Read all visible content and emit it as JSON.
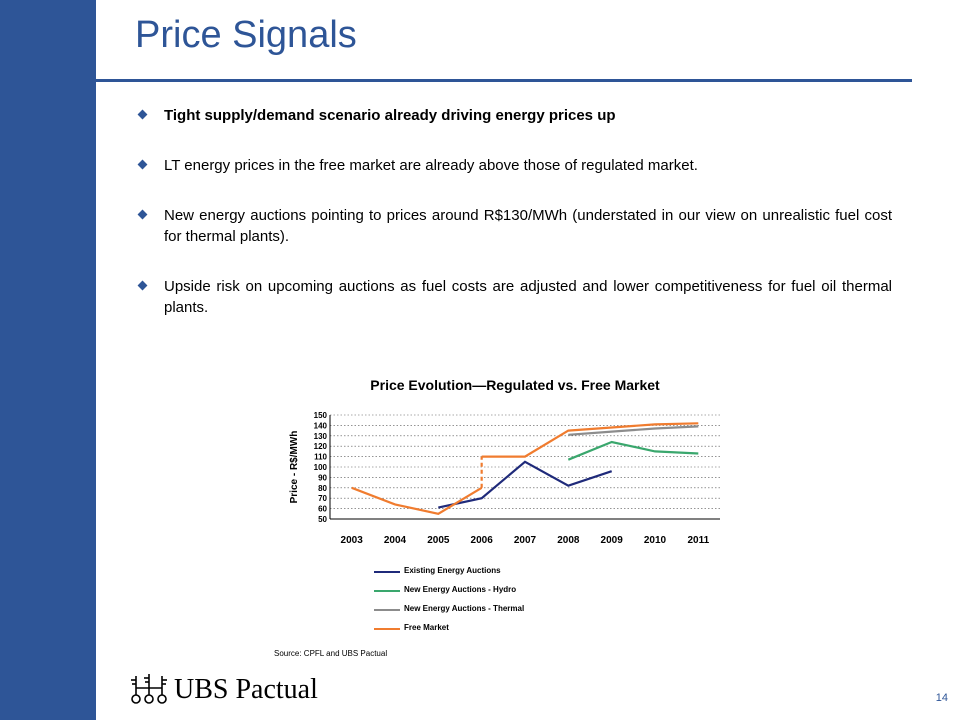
{
  "page": {
    "title": "Price Signals",
    "page_number": "14",
    "brand_color": "#2e5597"
  },
  "bullets": [
    "Tight supply/demand scenario already driving energy prices up",
    "LT energy prices in the free market are already above those of regulated market.",
    "New energy auctions pointing to prices around R$130/MWh (understated in our view on unrealistic fuel cost for thermal plants).",
    "Upside risk on upcoming auctions as fuel costs are adjusted and lower competitiveness for fuel oil thermal plants."
  ],
  "source_note": "Source: CPFL and UBS Pactual",
  "logo": {
    "text": "UBS Pactual",
    "icon": "keys-icon"
  },
  "chart_data": {
    "type": "line",
    "title": "Price Evolution—Regulated vs. Free Market",
    "ylabel": "Price - R$/MWh",
    "xlabel": "",
    "categories": [
      "2003",
      "2004",
      "2005",
      "2006",
      "2007",
      "2008",
      "2009",
      "2010",
      "2011"
    ],
    "ylim": [
      50,
      150
    ],
    "yticks": [
      50,
      60,
      70,
      80,
      90,
      100,
      110,
      120,
      130,
      140,
      150
    ],
    "grid": "dotted-horizontal",
    "series": [
      {
        "name": "Existing Energy Auctions",
        "color": "#1f2a7a",
        "points": [
          [
            2005,
            61
          ],
          [
            2006,
            70
          ],
          [
            2007,
            105
          ],
          [
            2008,
            82
          ],
          [
            2009,
            96
          ]
        ]
      },
      {
        "name": "New Energy Auctions - Hydro",
        "color": "#3aa76d",
        "points": [
          [
            2008,
            107
          ],
          [
            2009,
            124
          ],
          [
            2010,
            115
          ],
          [
            2011,
            113
          ]
        ]
      },
      {
        "name": "New Energy Auctions - Thermal",
        "color": "#8c8c8c",
        "points": [
          [
            2008,
            131
          ],
          [
            2009,
            134
          ],
          [
            2010,
            137
          ],
          [
            2011,
            139
          ]
        ]
      },
      {
        "name": "Free Market",
        "color": "#f07c2f",
        "points": [
          [
            2003,
            80
          ],
          [
            2004,
            64
          ],
          [
            2005,
            55
          ],
          [
            2006,
            80
          ]
        ],
        "step_points": [
          [
            2006,
            80
          ],
          [
            2006,
            110
          ],
          [
            2007,
            110
          ],
          [
            2008,
            135
          ],
          [
            2009,
            138
          ],
          [
            2010,
            141
          ],
          [
            2011,
            142
          ]
        ]
      }
    ]
  }
}
